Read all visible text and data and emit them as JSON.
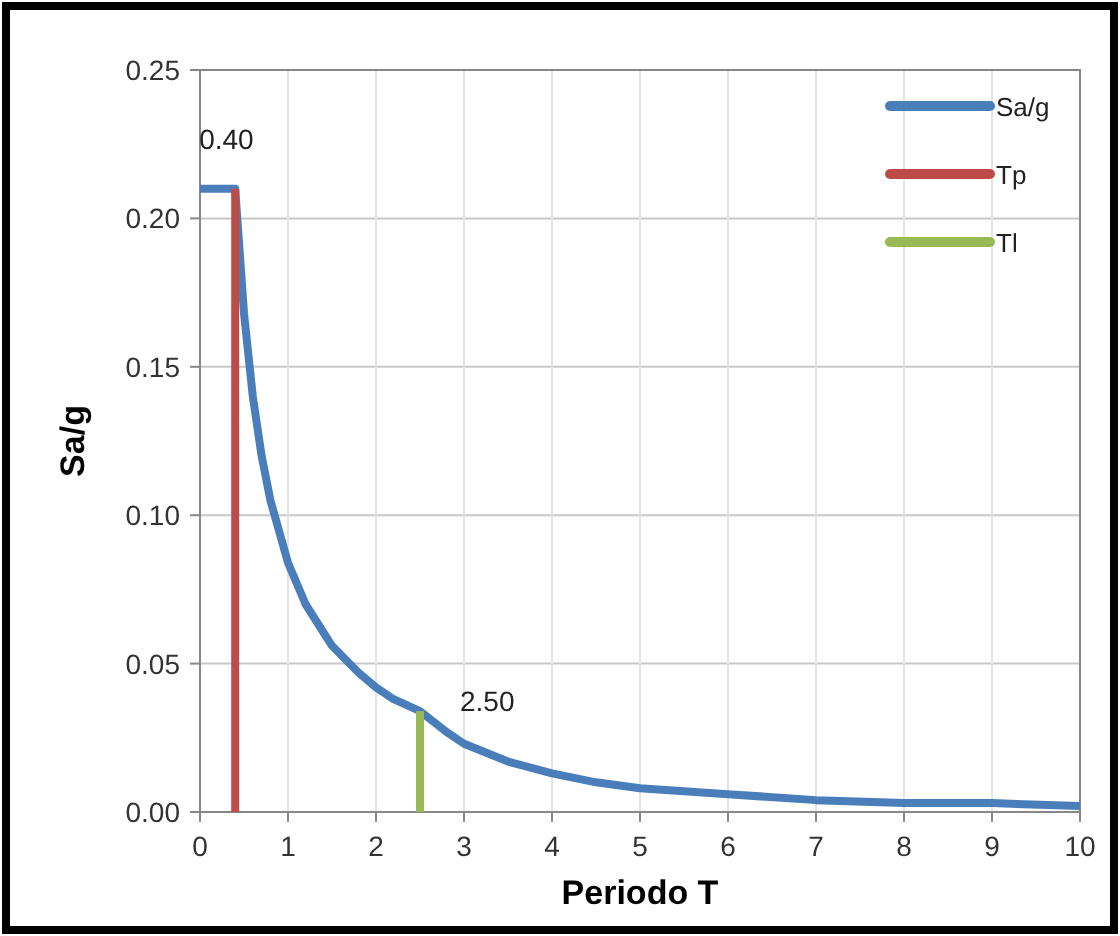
{
  "chart_data": {
    "type": "line",
    "xlabel": "Periodo T",
    "ylabel": "Sa/g",
    "xlim": [
      0,
      10
    ],
    "xticks": [
      0,
      1,
      2,
      3,
      4,
      5,
      6,
      7,
      8,
      9,
      10
    ],
    "ylim": [
      0,
      0.25
    ],
    "yticks": [
      {
        "value": 0,
        "label": "0.00"
      },
      {
        "value": 0.05,
        "label": "0.05"
      },
      {
        "value": 0.1,
        "label": "0.10"
      },
      {
        "value": 0.15,
        "label": "0.15"
      },
      {
        "value": 0.2,
        "label": "0.20"
      },
      {
        "value": 0.25,
        "label": "0.25"
      }
    ],
    "grid": true,
    "legend": "top right",
    "marker": "none",
    "line_style": "solid",
    "series": [
      {
        "name": "Sa/g",
        "color": "#4a7ebb",
        "x": [
          0,
          0.4,
          0.5,
          0.6,
          0.7,
          0.8,
          1,
          1.2,
          1.5,
          1.8,
          2,
          2.2,
          2.5,
          2.8,
          3,
          3.5,
          4,
          4.5,
          5,
          6,
          7,
          8,
          9,
          10
        ],
        "values": [
          0.21,
          0.21,
          0.168,
          0.14,
          0.12,
          0.105,
          0.084,
          0.07,
          0.056,
          0.047,
          0.042,
          0.038,
          0.034,
          0.027,
          0.023,
          0.017,
          0.013,
          0.01,
          0.008,
          0.006,
          0.004,
          0.003,
          0.003,
          0.002
        ]
      },
      {
        "name": "Tp",
        "color": "#be4b48",
        "x": [
          0.4,
          0.4
        ],
        "values": [
          0,
          0.21
        ]
      },
      {
        "name": "Tl",
        "color": "#98b954",
        "x": [
          2.5,
          2.5
        ],
        "values": [
          0,
          0.034
        ]
      }
    ],
    "annotations": [
      {
        "text": "0.40",
        "x": 0.4,
        "y": 0.21
      },
      {
        "text": "2.50",
        "x": 2.5,
        "y": 0.034
      }
    ]
  }
}
